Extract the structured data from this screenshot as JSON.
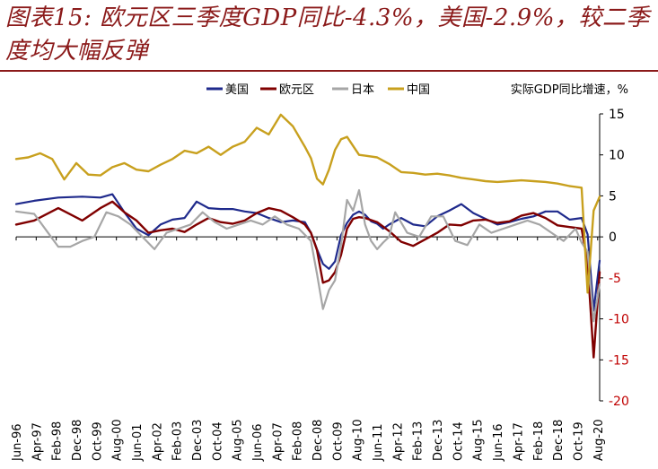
{
  "title": "图表15: 欧元区三季度GDP同比-4.3%，美国-2.9%，较二季度均大幅反弹",
  "chart_data": {
    "type": "line",
    "title": "图表15: 欧元区三季度GDP同比-4.3%，美国-2.9%，较二季度均大幅反弹",
    "ylabel": "实际GDP同比增速，%",
    "ylim": [
      -20,
      15
    ],
    "yticks": [
      15,
      10,
      5,
      0,
      -5,
      -10,
      -15,
      -20
    ],
    "x_range": [
      "1996-06",
      "2020-09"
    ],
    "xticks": [
      "Jun-96",
      "Apr-97",
      "Feb-98",
      "Dec-98",
      "Oct-99",
      "Aug-00",
      "Jun-01",
      "Apr-02",
      "Feb-03",
      "Dec-03",
      "Oct-04",
      "Aug-05",
      "Jun-06",
      "Apr-07",
      "Feb-08",
      "Dec-08",
      "Oct-09",
      "Aug-10",
      "Jun-11",
      "Apr-12",
      "Feb-13",
      "Dec-13",
      "Oct-14",
      "Aug-15",
      "Jun-16",
      "Apr-17",
      "Feb-18",
      "Dec-18",
      "Oct-19",
      "Aug-20"
    ],
    "legend_position": "top",
    "series": [
      {
        "name": "美国",
        "color": "#1F2A8C",
        "width": 2.2,
        "x": [
          "1996-06",
          "1997-03",
          "1998-03",
          "1999-03",
          "1999-12",
          "2000-06",
          "2000-12",
          "2001-06",
          "2001-12",
          "2002-06",
          "2002-12",
          "2003-06",
          "2003-12",
          "2004-06",
          "2004-12",
          "2005-06",
          "2005-12",
          "2006-06",
          "2006-12",
          "2007-06",
          "2007-12",
          "2008-06",
          "2008-09",
          "2008-12",
          "2009-03",
          "2009-06",
          "2009-09",
          "2009-12",
          "2010-03",
          "2010-06",
          "2010-09",
          "2010-12",
          "2011-03",
          "2011-06",
          "2011-09",
          "2011-12",
          "2012-06",
          "2012-12",
          "2013-06",
          "2013-12",
          "2014-06",
          "2014-12",
          "2015-06",
          "2015-12",
          "2016-06",
          "2016-12",
          "2017-06",
          "2017-12",
          "2018-06",
          "2018-12",
          "2019-06",
          "2019-12",
          "2020-03",
          "2020-06",
          "2020-09"
        ],
        "values": [
          4.0,
          4.4,
          4.8,
          4.9,
          4.8,
          5.2,
          3.0,
          1.0,
          0.2,
          1.5,
          2.1,
          2.3,
          4.3,
          3.5,
          3.4,
          3.4,
          3.1,
          2.9,
          2.3,
          1.8,
          2.0,
          1.8,
          0.5,
          -1.5,
          -3.3,
          -3.9,
          -3.0,
          0.2,
          1.7,
          2.7,
          3.1,
          2.7,
          1.9,
          1.6,
          1.0,
          1.5,
          2.3,
          1.5,
          1.3,
          2.5,
          3.2,
          4.0,
          2.9,
          2.2,
          1.5,
          1.8,
          2.2,
          2.5,
          3.1,
          3.1,
          2.1,
          2.3,
          0.3,
          -9.0,
          -2.9
        ]
      },
      {
        "name": "欧元区",
        "color": "#800000",
        "width": 2.4,
        "x": [
          "1996-06",
          "1997-03",
          "1998-03",
          "1999-03",
          "1999-12",
          "2000-06",
          "2000-12",
          "2001-06",
          "2001-12",
          "2002-06",
          "2002-12",
          "2003-06",
          "2003-12",
          "2004-06",
          "2004-12",
          "2005-06",
          "2005-12",
          "2006-06",
          "2006-12",
          "2007-06",
          "2007-12",
          "2008-06",
          "2008-09",
          "2008-12",
          "2009-03",
          "2009-06",
          "2009-09",
          "2009-12",
          "2010-03",
          "2010-06",
          "2010-09",
          "2010-12",
          "2011-06",
          "2011-12",
          "2012-06",
          "2012-12",
          "2013-06",
          "2013-12",
          "2014-06",
          "2014-12",
          "2015-06",
          "2015-12",
          "2016-06",
          "2016-12",
          "2017-06",
          "2017-12",
          "2018-06",
          "2018-12",
          "2019-06",
          "2019-12",
          "2020-03",
          "2020-06",
          "2020-09"
        ],
        "values": [
          1.5,
          2.0,
          3.5,
          2.0,
          3.5,
          4.3,
          3.0,
          2.0,
          0.5,
          0.8,
          1.0,
          0.6,
          1.5,
          2.3,
          1.8,
          1.6,
          2.0,
          2.9,
          3.5,
          3.2,
          2.4,
          1.5,
          0.5,
          -1.6,
          -5.6,
          -5.3,
          -4.3,
          -2.2,
          1.0,
          2.2,
          2.4,
          2.3,
          1.8,
          0.7,
          -0.6,
          -1.1,
          -0.3,
          0.5,
          1.5,
          1.4,
          2.0,
          2.1,
          1.7,
          1.9,
          2.6,
          2.9,
          2.3,
          1.4,
          1.2,
          1.0,
          -3.2,
          -14.7,
          -4.3
        ]
      },
      {
        "name": "日本",
        "color": "#A6A6A6",
        "width": 2.2,
        "x": [
          "1996-06",
          "1997-03",
          "1997-09",
          "1998-03",
          "1998-09",
          "1999-03",
          "1999-09",
          "2000-03",
          "2000-09",
          "2001-03",
          "2001-09",
          "2002-03",
          "2002-09",
          "2003-03",
          "2003-09",
          "2004-03",
          "2004-09",
          "2005-03",
          "2005-09",
          "2006-03",
          "2006-09",
          "2007-03",
          "2007-09",
          "2008-03",
          "2008-09",
          "2008-12",
          "2009-03",
          "2009-06",
          "2009-09",
          "2009-12",
          "2010-03",
          "2010-06",
          "2010-09",
          "2010-12",
          "2011-03",
          "2011-06",
          "2011-09",
          "2011-12",
          "2012-03",
          "2012-09",
          "2013-03",
          "2013-09",
          "2014-03",
          "2014-09",
          "2015-03",
          "2015-09",
          "2016-03",
          "2016-09",
          "2017-03",
          "2017-09",
          "2018-03",
          "2018-09",
          "2019-03",
          "2019-09",
          "2019-12",
          "2020-03",
          "2020-06",
          "2020-09"
        ],
        "values": [
          3.1,
          2.8,
          0.8,
          -1.2,
          -1.2,
          -0.5,
          0.0,
          3.0,
          2.5,
          1.5,
          0.0,
          -1.5,
          0.5,
          1.0,
          1.5,
          3.0,
          1.8,
          1.0,
          1.5,
          2.0,
          1.5,
          2.5,
          1.5,
          1.0,
          -0.5,
          -4.5,
          -8.8,
          -6.5,
          -5.3,
          -1.0,
          4.5,
          3.2,
          5.7,
          1.5,
          -0.5,
          -1.5,
          -0.7,
          0.0,
          3.0,
          0.5,
          0.0,
          2.5,
          2.5,
          -0.5,
          -1.0,
          1.5,
          0.5,
          1.0,
          1.5,
          2.0,
          1.5,
          0.5,
          -0.5,
          1.0,
          -0.7,
          -1.8,
          -10.3,
          -5.8
        ]
      },
      {
        "name": "中国",
        "color": "#C8A01E",
        "width": 2.4,
        "x": [
          "1996-06",
          "1996-12",
          "1997-06",
          "1997-12",
          "1998-06",
          "1998-12",
          "1999-06",
          "1999-12",
          "2000-06",
          "2000-12",
          "2001-06",
          "2001-12",
          "2002-06",
          "2002-12",
          "2003-06",
          "2003-12",
          "2004-06",
          "2004-12",
          "2005-06",
          "2005-12",
          "2006-06",
          "2006-12",
          "2007-06",
          "2007-12",
          "2008-06",
          "2008-09",
          "2008-12",
          "2009-03",
          "2009-06",
          "2009-09",
          "2009-12",
          "2010-03",
          "2010-06",
          "2010-09",
          "2010-12",
          "2011-06",
          "2011-12",
          "2012-06",
          "2012-12",
          "2013-06",
          "2013-12",
          "2014-06",
          "2014-12",
          "2015-06",
          "2015-12",
          "2016-06",
          "2016-12",
          "2017-06",
          "2017-12",
          "2018-06",
          "2018-12",
          "2019-06",
          "2019-12",
          "2020-03",
          "2020-06",
          "2020-09"
        ],
        "values": [
          9.5,
          9.7,
          10.2,
          9.5,
          7.0,
          9.0,
          7.6,
          7.5,
          8.5,
          9.0,
          8.2,
          8.0,
          8.8,
          9.5,
          10.5,
          10.2,
          11.0,
          10.0,
          11.0,
          11.6,
          13.3,
          12.5,
          14.9,
          13.5,
          11.0,
          9.6,
          7.1,
          6.4,
          8.2,
          10.6,
          11.9,
          12.2,
          11.1,
          10.0,
          9.9,
          9.7,
          8.9,
          7.9,
          7.8,
          7.6,
          7.7,
          7.5,
          7.2,
          7.0,
          6.8,
          6.7,
          6.8,
          6.9,
          6.8,
          6.7,
          6.5,
          6.2,
          6.0,
          -6.8,
          3.2,
          4.9
        ]
      }
    ]
  }
}
